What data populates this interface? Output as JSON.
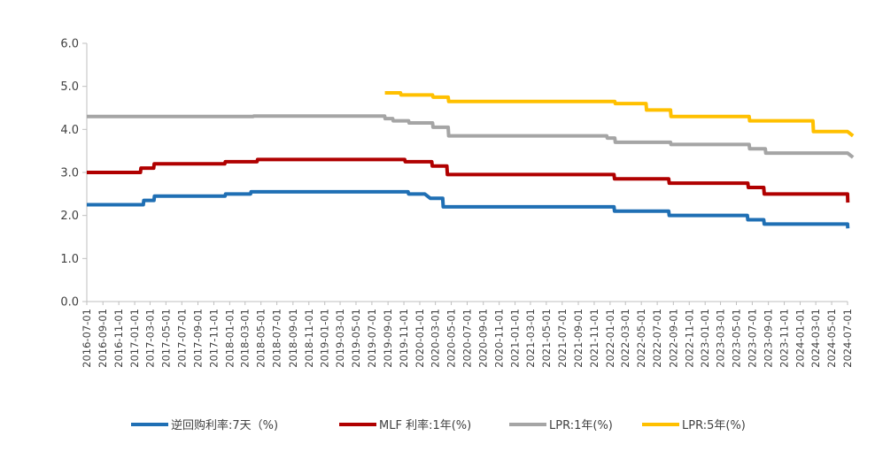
{
  "chart_data": {
    "type": "line",
    "title": "",
    "xlabel": "",
    "ylabel": "",
    "ylim": [
      0,
      6
    ],
    "yticks": [
      "0.0",
      "1.0",
      "2.0",
      "3.0",
      "4.0",
      "5.0",
      "6.0"
    ],
    "grid": false,
    "legend_position": "bottom",
    "x_start": "2016-07-01",
    "x_end": "2024-07-01",
    "x_tick_labels": [
      "2016-07-01",
      "2016-09-01",
      "2016-11-01",
      "2017-01-01",
      "2017-03-01",
      "2017-05-01",
      "2017-07-01",
      "2017-09-01",
      "2017-11-01",
      "2018-01-01",
      "2018-03-01",
      "2018-05-01",
      "2018-07-01",
      "2018-09-01",
      "2018-11-01",
      "2019-01-01",
      "2019-03-01",
      "2019-05-01",
      "2019-07-01",
      "2019-09-01",
      "2019-11-01",
      "2020-01-01",
      "2020-03-01",
      "2020-05-01",
      "2020-07-01",
      "2020-09-01",
      "2020-11-01",
      "2021-01-01",
      "2021-03-01",
      "2021-05-01",
      "2021-07-01",
      "2021-09-01",
      "2021-11-01",
      "2022-01-01",
      "2022-03-01",
      "2022-05-01",
      "2022-07-01",
      "2022-09-01",
      "2022-11-01",
      "2023-01-01",
      "2023-03-01",
      "2023-05-01",
      "2023-07-01",
      "2023-09-01",
      "2023-11-01",
      "2024-01-01",
      "2024-03-01",
      "2024-05-01",
      "2024-07-01"
    ],
    "series": [
      {
        "name": "逆回购利率:7天（%)",
        "color": "#1f6fb4",
        "points": [
          [
            "2016-07-01",
            2.25
          ],
          [
            "2017-02-03",
            2.25
          ],
          [
            "2017-02-05",
            2.35
          ],
          [
            "2017-03-16",
            2.35
          ],
          [
            "2017-03-18",
            2.45
          ],
          [
            "2017-12-14",
            2.45
          ],
          [
            "2017-12-16",
            2.5
          ],
          [
            "2018-03-22",
            2.5
          ],
          [
            "2018-03-24",
            2.55
          ],
          [
            "2019-11-17",
            2.55
          ],
          [
            "2019-11-19",
            2.5
          ],
          [
            "2020-01-20",
            2.5
          ],
          [
            "2020-02-10",
            2.4
          ],
          [
            "2020-03-29",
            2.4
          ],
          [
            "2020-03-31",
            2.2
          ],
          [
            "2022-01-16",
            2.2
          ],
          [
            "2022-01-18",
            2.1
          ],
          [
            "2022-08-14",
            2.1
          ],
          [
            "2022-08-16",
            2.0
          ],
          [
            "2023-06-12",
            2.0
          ],
          [
            "2023-06-14",
            1.9
          ],
          [
            "2023-08-14",
            1.9
          ],
          [
            "2023-08-16",
            1.8
          ],
          [
            "2024-07-01",
            1.8
          ],
          [
            "2024-07-02",
            1.7
          ]
        ]
      },
      {
        "name": "MLF 利率:1年(%)",
        "color": "#b00000",
        "points": [
          [
            "2016-07-01",
            3.0
          ],
          [
            "2017-01-23",
            3.0
          ],
          [
            "2017-01-25",
            3.1
          ],
          [
            "2017-03-15",
            3.1
          ],
          [
            "2017-03-17",
            3.2
          ],
          [
            "2017-12-13",
            3.2
          ],
          [
            "2017-12-15",
            3.25
          ],
          [
            "2018-04-16",
            3.25
          ],
          [
            "2018-04-18",
            3.3
          ],
          [
            "2019-11-04",
            3.3
          ],
          [
            "2019-11-06",
            3.25
          ],
          [
            "2020-02-16",
            3.25
          ],
          [
            "2020-02-18",
            3.15
          ],
          [
            "2020-04-14",
            3.15
          ],
          [
            "2020-04-16",
            2.95
          ],
          [
            "2022-01-16",
            2.95
          ],
          [
            "2022-01-18",
            2.85
          ],
          [
            "2022-08-14",
            2.85
          ],
          [
            "2022-08-16",
            2.75
          ],
          [
            "2023-06-14",
            2.75
          ],
          [
            "2023-06-16",
            2.65
          ],
          [
            "2023-08-14",
            2.65
          ],
          [
            "2023-08-16",
            2.5
          ],
          [
            "2024-07-01",
            2.5
          ],
          [
            "2024-07-02",
            2.3
          ]
        ]
      },
      {
        "name": "LPR:1年(%)",
        "color": "#a5a5a5",
        "points": [
          [
            "2016-07-01",
            4.3
          ],
          [
            "2018-04-01",
            4.3
          ],
          [
            "2018-04-03",
            4.31
          ],
          [
            "2019-08-19",
            4.31
          ],
          [
            "2019-08-21",
            4.25
          ],
          [
            "2019-09-19",
            4.25
          ],
          [
            "2019-09-21",
            4.2
          ],
          [
            "2019-11-19",
            4.2
          ],
          [
            "2019-11-21",
            4.15
          ],
          [
            "2020-02-19",
            4.15
          ],
          [
            "2020-02-21",
            4.05
          ],
          [
            "2020-04-19",
            4.05
          ],
          [
            "2020-04-21",
            3.85
          ],
          [
            "2021-12-19",
            3.85
          ],
          [
            "2021-12-21",
            3.8
          ],
          [
            "2022-01-19",
            3.8
          ],
          [
            "2022-01-21",
            3.7
          ],
          [
            "2022-08-21",
            3.7
          ],
          [
            "2022-08-23",
            3.65
          ],
          [
            "2023-06-19",
            3.65
          ],
          [
            "2023-06-21",
            3.55
          ],
          [
            "2023-08-20",
            3.55
          ],
          [
            "2023-08-22",
            3.45
          ],
          [
            "2024-07-01",
            3.45
          ],
          [
            "2024-07-22",
            3.35
          ]
        ]
      },
      {
        "name": "LPR:5年(%)",
        "color": "#ffc000",
        "points": [
          [
            "2019-08-20",
            4.85
          ],
          [
            "2019-10-19",
            4.85
          ],
          [
            "2019-10-21",
            4.8
          ],
          [
            "2020-02-19",
            4.8
          ],
          [
            "2020-02-21",
            4.75
          ],
          [
            "2020-04-19",
            4.75
          ],
          [
            "2020-04-21",
            4.65
          ],
          [
            "2022-01-19",
            4.65
          ],
          [
            "2022-01-21",
            4.6
          ],
          [
            "2022-05-19",
            4.6
          ],
          [
            "2022-05-21",
            4.45
          ],
          [
            "2022-08-21",
            4.45
          ],
          [
            "2022-08-23",
            4.3
          ],
          [
            "2023-06-19",
            4.3
          ],
          [
            "2023-06-21",
            4.2
          ],
          [
            "2024-02-19",
            4.2
          ],
          [
            "2024-02-21",
            3.95
          ],
          [
            "2024-07-01",
            3.95
          ],
          [
            "2024-07-22",
            3.85
          ]
        ]
      }
    ]
  }
}
